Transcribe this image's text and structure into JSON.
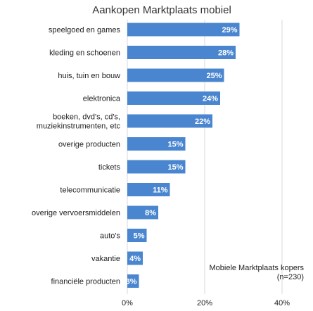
{
  "chart_data": {
    "type": "bar",
    "orientation": "horizontal",
    "title": "Aankopen Marktplaats mobiel",
    "categories": [
      "speelgoed en games",
      "kleding en schoenen",
      "huis, tuin en bouw",
      "elektronica",
      "boeken, dvd's, cd's, muziekinstrumenten, etc",
      "overige producten",
      "tickets",
      "telecommunicatie",
      "overige vervoersmiddelen",
      "auto's",
      "vakantie",
      "financiële producten"
    ],
    "category_lines": [
      [
        "speelgoed en games"
      ],
      [
        "kleding en schoenen"
      ],
      [
        "huis, tuin en bouw"
      ],
      [
        "elektronica"
      ],
      [
        "boeken, dvd's, cd's,",
        "muziekinstrumenten, etc"
      ],
      [
        "overige producten"
      ],
      [
        "tickets"
      ],
      [
        "telecommunicatie"
      ],
      [
        "overige vervoersmiddelen"
      ],
      [
        "auto's"
      ],
      [
        "vakantie"
      ],
      [
        "financiële producten"
      ]
    ],
    "values": [
      29,
      28,
      25,
      24,
      22,
      15,
      15,
      11,
      8,
      5,
      4,
      3
    ],
    "value_labels": [
      "29%",
      "28%",
      "25%",
      "24%",
      "22%",
      "15%",
      "15%",
      "11%",
      "8%",
      "5%",
      "4%",
      "3%"
    ],
    "xlim": [
      0,
      40
    ],
    "xticks": [
      0,
      20,
      40
    ],
    "xtick_labels": [
      "0%",
      "20%",
      "40%"
    ],
    "annotation": [
      "Mobiele Marktplaats kopers",
      "(n=230)"
    ],
    "bar_color": "#4a86cf",
    "grid": true,
    "grid_color": "#d9d9d9"
  }
}
